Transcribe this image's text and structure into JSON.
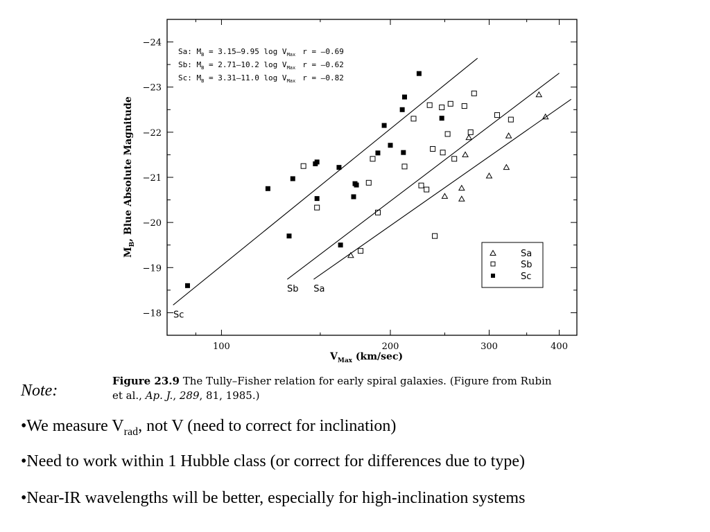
{
  "chart_data": {
    "type": "scatter",
    "xscale": "log",
    "xlim": [
      80,
      430
    ],
    "ylim": [
      -17.5,
      -24.5
    ],
    "xticks": [
      100,
      200,
      300,
      400
    ],
    "xtick_labels": [
      "100",
      "200",
      "300",
      "400"
    ],
    "yticks": [
      -18,
      -19,
      -20,
      -21,
      -22,
      -23,
      -24
    ],
    "ytick_labels": [
      "-18",
      "-19",
      "-20",
      "-21",
      "-22",
      "-23",
      "-24"
    ],
    "xlabel": {
      "main": "V",
      "sub": "Max",
      "rest": " (km/sec)"
    },
    "ylabel": {
      "main": "M",
      "sub": "B",
      "rest": ", Blue Absolute Magnitude"
    },
    "grid": false,
    "legend_position": "lower-right",
    "equations": [
      {
        "type": "Sa",
        "lead": "Sa: M",
        "sub1": "B",
        "eq": " = 3.15–9.95 log V",
        "sub2": "Max",
        "r": "r = –0.69"
      },
      {
        "type": "Sb",
        "lead": "Sb: M",
        "sub1": "B",
        "eq": " = 2.71–10.2 log V",
        "sub2": "Max",
        "r": "r = –0.62"
      },
      {
        "type": "Sc",
        "lead": "Sc: M",
        "sub1": "B",
        "eq": " = 3.31–11.0 log V",
        "sub2": "Max",
        "r": "r = –0.82"
      }
    ],
    "series": [
      {
        "name": "Sa",
        "marker": "triangle-open",
        "points": [
          [
            170,
            -19.27
          ],
          [
            250,
            -20.58
          ],
          [
            268,
            -20.76
          ],
          [
            268,
            -20.52
          ],
          [
            272,
            -21.5
          ],
          [
            276,
            -21.88
          ],
          [
            300,
            -21.03
          ],
          [
            322,
            -21.22
          ],
          [
            325,
            -21.92
          ],
          [
            368,
            -22.83
          ],
          [
            378,
            -22.34
          ]
        ]
      },
      {
        "name": "Sb",
        "marker": "square-open",
        "points": [
          [
            140,
            -21.25
          ],
          [
            148,
            -20.33
          ],
          [
            177,
            -19.37
          ],
          [
            183,
            -20.88
          ],
          [
            186,
            -21.41
          ],
          [
            190,
            -20.22
          ],
          [
            212,
            -21.24
          ],
          [
            220,
            -22.3
          ],
          [
            227,
            -20.82
          ],
          [
            232,
            -20.73
          ],
          [
            235,
            -22.6
          ],
          [
            238,
            -21.63
          ],
          [
            240,
            -19.7
          ],
          [
            247,
            -22.55
          ],
          [
            248,
            -21.55
          ],
          [
            253,
            -21.96
          ],
          [
            256,
            -22.63
          ],
          [
            260,
            -21.41
          ],
          [
            271,
            -22.58
          ],
          [
            278,
            -22.0
          ],
          [
            282,
            -22.86
          ],
          [
            310,
            -22.38
          ],
          [
            328,
            -22.28
          ]
        ]
      },
      {
        "name": "Sc",
        "marker": "square-filled",
        "points": [
          [
            87,
            -18.6
          ],
          [
            121,
            -20.75
          ],
          [
            132,
            -19.7
          ],
          [
            134,
            -20.97
          ],
          [
            147,
            -21.3
          ],
          [
            148,
            -21.34
          ],
          [
            148,
            -20.53
          ],
          [
            162,
            -21.22
          ],
          [
            163,
            -19.5
          ],
          [
            172,
            -20.57
          ],
          [
            173,
            -20.86
          ],
          [
            174,
            -20.83
          ],
          [
            190,
            -21.54
          ],
          [
            195,
            -22.15
          ],
          [
            200,
            -21.71
          ],
          [
            210,
            -22.5
          ],
          [
            211,
            -21.55
          ],
          [
            212,
            -22.78
          ],
          [
            225,
            -23.3
          ],
          [
            247,
            -22.31
          ]
        ]
      }
    ],
    "fit_lines": [
      {
        "type": "Sa",
        "label": "Sa",
        "from": [
          146,
          -18.74
        ],
        "to": [
          420,
          -22.73
        ]
      },
      {
        "type": "Sb",
        "label": "Sb",
        "from": [
          131,
          -18.74
        ],
        "to": [
          400,
          -23.31
        ]
      },
      {
        "type": "Sc",
        "label": "Sc",
        "from": [
          82,
          -18.17
        ],
        "to": [
          286,
          -23.64
        ]
      }
    ],
    "legend": [
      {
        "type": "Sa",
        "label": "Sa"
      },
      {
        "type": "Sb",
        "label": "Sb"
      },
      {
        "type": "Sc",
        "label": "Sc"
      }
    ]
  },
  "caption": {
    "label": "Figure 23.9",
    "text1": " The Tully–Fisher relation for early spiral galaxies. (Figure from Rubin et al., ",
    "journal": "Ap. J.",
    "sep": ", ",
    "volume": "289",
    "text2": ", 81, 1985.)"
  },
  "note": "Note:",
  "bullets": [
    {
      "pre": "•We measure V",
      "sub": "rad",
      "post": ", not V (need to correct for inclination)"
    },
    {
      "pre": "•Need to work within 1 Hubble class (or correct for differences due to type)"
    },
    {
      "pre": "•Near-IR wavelengths will be better, especially for high-inclination systems"
    }
  ]
}
